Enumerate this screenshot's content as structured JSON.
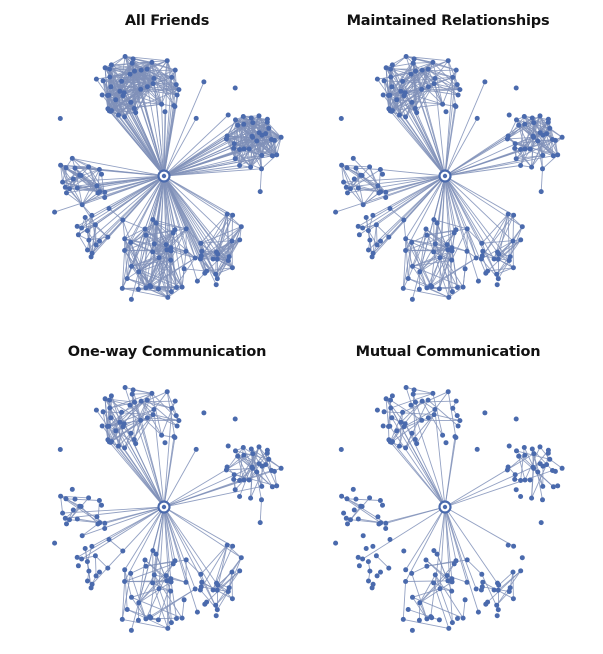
{
  "panels": [
    {
      "title": "All Friends",
      "edge_density": 1.0
    },
    {
      "title": "Maintained Relationships",
      "edge_density": 0.55
    },
    {
      "title": "One-way Communication",
      "edge_density": 0.32
    },
    {
      "title": "Mutual Communication",
      "edge_density": 0.14
    }
  ],
  "colors": {
    "node": "#4a6aad",
    "edge": "#8090b8",
    "ego": "#4a6aad"
  }
}
